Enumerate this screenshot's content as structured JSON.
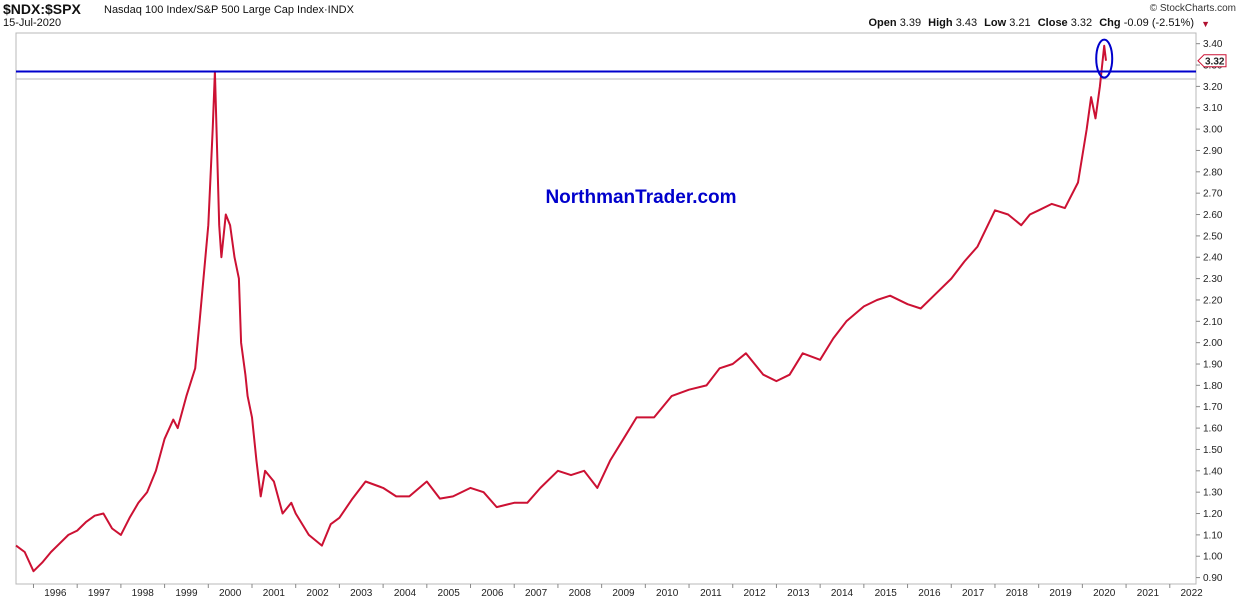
{
  "header": {
    "symbol": "$NDX:$SPX",
    "description": "Nasdaq 100 Index/S&P 500 Large Cap Index",
    "exchange": "INDX",
    "date": "15-Jul-2020",
    "credit": "© StockCharts.com",
    "ohlc": {
      "open_label": "Open",
      "open": "3.39",
      "high_label": "High",
      "high": "3.43",
      "low_label": "Low",
      "low": "3.21",
      "close_label": "Close",
      "close": "3.32",
      "chg_label": "Chg",
      "chg": "-0.09 (-2.51%)"
    }
  },
  "watermark": "NorthmanTrader.com",
  "chart_data": {
    "type": "line",
    "title": "$NDX:$SPX",
    "series": [
      {
        "name": "$NDX:$SPX",
        "color": "#cc1133",
        "x": [
          1995.6,
          1995.8,
          1996.0,
          1996.2,
          1996.4,
          1996.6,
          1996.8,
          1997.0,
          1997.2,
          1997.4,
          1997.6,
          1997.8,
          1998.0,
          1998.2,
          1998.4,
          1998.6,
          1998.8,
          1999.0,
          1999.2,
          1999.3,
          1999.5,
          1999.7,
          1999.8,
          2000.0,
          2000.1,
          2000.15,
          2000.25,
          2000.3,
          2000.4,
          2000.5,
          2000.6,
          2000.7,
          2000.75,
          2000.85,
          2000.9,
          2001.0,
          2001.1,
          2001.2,
          2001.3,
          2001.5,
          2001.7,
          2001.9,
          2002.0,
          2002.3,
          2002.6,
          2002.8,
          2003.0,
          2003.3,
          2003.6,
          2004.0,
          2004.3,
          2004.6,
          2005.0,
          2005.3,
          2005.6,
          2006.0,
          2006.3,
          2006.6,
          2007.0,
          2007.3,
          2007.6,
          2008.0,
          2008.3,
          2008.6,
          2008.9,
          2009.2,
          2009.5,
          2009.8,
          2010.2,
          2010.6,
          2011.0,
          2011.4,
          2011.7,
          2012.0,
          2012.3,
          2012.7,
          2013.0,
          2013.3,
          2013.6,
          2014.0,
          2014.3,
          2014.6,
          2015.0,
          2015.3,
          2015.6,
          2016.0,
          2016.3,
          2016.6,
          2017.0,
          2017.3,
          2017.6,
          2018.0,
          2018.3,
          2018.6,
          2018.8,
          2019.0,
          2019.3,
          2019.6,
          2019.9,
          2020.1,
          2020.2,
          2020.3,
          2020.4,
          2020.5,
          2020.54
        ],
        "y": [
          1.05,
          1.02,
          0.93,
          0.97,
          1.02,
          1.06,
          1.1,
          1.12,
          1.16,
          1.19,
          1.2,
          1.13,
          1.1,
          1.18,
          1.25,
          1.3,
          1.4,
          1.55,
          1.64,
          1.6,
          1.75,
          1.88,
          2.1,
          2.55,
          3.0,
          3.27,
          2.55,
          2.4,
          2.6,
          2.55,
          2.4,
          2.3,
          2.0,
          1.85,
          1.75,
          1.65,
          1.45,
          1.28,
          1.4,
          1.35,
          1.2,
          1.25,
          1.2,
          1.1,
          1.05,
          1.15,
          1.18,
          1.27,
          1.35,
          1.32,
          1.28,
          1.28,
          1.35,
          1.27,
          1.28,
          1.32,
          1.3,
          1.23,
          1.25,
          1.25,
          1.32,
          1.4,
          1.38,
          1.4,
          1.32,
          1.45,
          1.55,
          1.65,
          1.65,
          1.75,
          1.78,
          1.8,
          1.88,
          1.9,
          1.95,
          1.85,
          1.82,
          1.85,
          1.95,
          1.92,
          2.02,
          2.1,
          2.17,
          2.2,
          2.22,
          2.18,
          2.16,
          2.22,
          2.3,
          2.38,
          2.45,
          2.62,
          2.6,
          2.55,
          2.6,
          2.62,
          2.65,
          2.63,
          2.75,
          3.0,
          3.15,
          3.05,
          3.2,
          3.39,
          3.32
        ]
      }
    ],
    "xlim": [
      1995.6,
      2022.6
    ],
    "ylim": [
      0.87,
      3.45
    ],
    "x_ticks": [
      "1996",
      "1997",
      "1998",
      "1999",
      "2000",
      "2001",
      "2002",
      "2003",
      "2004",
      "2005",
      "2006",
      "2007",
      "2008",
      "2009",
      "2010",
      "2011",
      "2012",
      "2013",
      "2014",
      "2015",
      "2016",
      "2017",
      "2018",
      "2019",
      "2020",
      "2021",
      "2022"
    ],
    "y_ticks": [
      "0.90",
      "1.00",
      "1.10",
      "1.20",
      "1.30",
      "1.40",
      "1.50",
      "1.60",
      "1.70",
      "1.80",
      "1.90",
      "2.00",
      "2.10",
      "2.20",
      "2.30",
      "2.40",
      "2.50",
      "2.60",
      "2.70",
      "2.80",
      "2.90",
      "3.00",
      "3.10",
      "3.20",
      "3.30",
      "3.40"
    ],
    "horizontal_line": {
      "y": 3.27,
      "color": "#0000cc"
    },
    "last_value_label": "3.32",
    "highlight_ellipse": {
      "x": 2020.5,
      "y": 3.33,
      "color": "#0000cc"
    },
    "grid": false
  }
}
